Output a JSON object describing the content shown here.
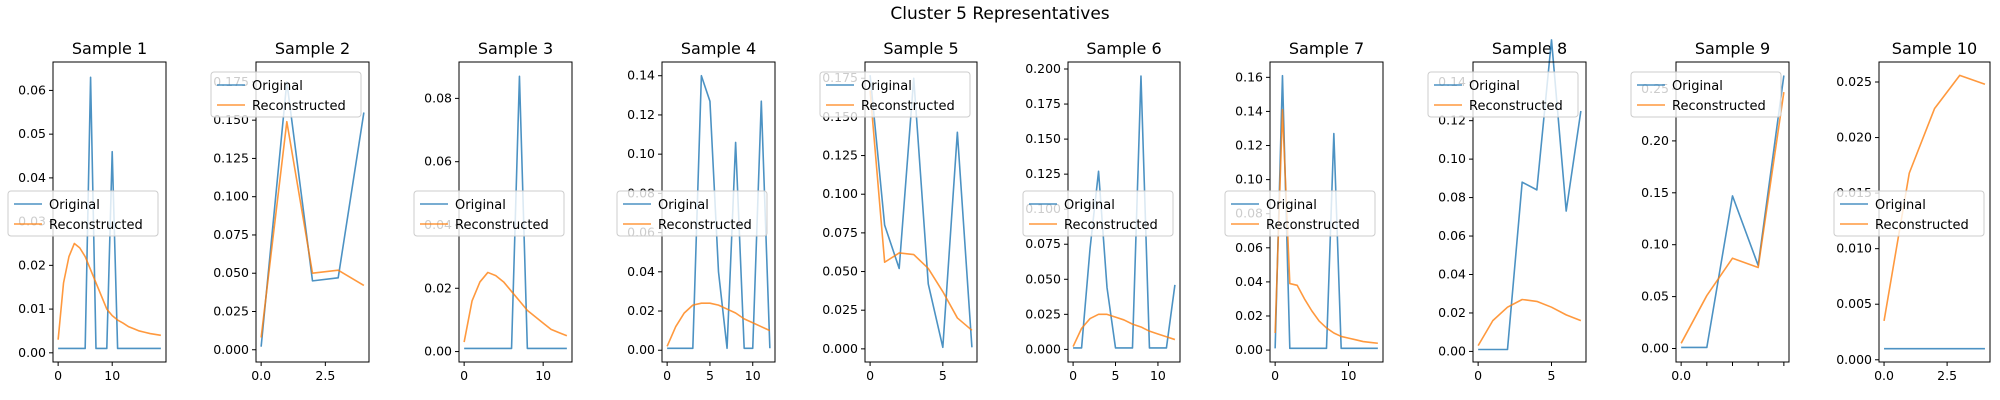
{
  "figure": {
    "suptitle": "Cluster 5 Representatives",
    "legend_labels": [
      "Original",
      "Reconstructed"
    ],
    "colors": {
      "original": "#1f77b4",
      "reconstructed": "#ff7f0e"
    }
  },
  "chart_data": [
    {
      "type": "line",
      "title": "Sample 1",
      "xlim": [
        -0.95,
        19.95
      ],
      "ylim": [
        -0.0021,
        0.0665
      ],
      "xticks": [
        0,
        10
      ],
      "xtick_labels": [
        "0",
        "10"
      ],
      "yticks": [
        0.0,
        0.01,
        0.02,
        0.03,
        0.04,
        0.05,
        0.06
      ],
      "ytick_labels": [
        "0.00",
        "0.01",
        "0.02",
        "0.03",
        "0.04",
        "0.05",
        "0.06"
      ],
      "legend": "center-left",
      "series": [
        {
          "name": "Original",
          "x": [
            0,
            1,
            2,
            3,
            4,
            5,
            6,
            7,
            8,
            9,
            10,
            11,
            12,
            13,
            14,
            15,
            16,
            17,
            18,
            19
          ],
          "y": [
            0.001,
            0.001,
            0.001,
            0.001,
            0.001,
            0.001,
            0.063,
            0.001,
            0.001,
            0.001,
            0.046,
            0.001,
            0.001,
            0.001,
            0.001,
            0.001,
            0.001,
            0.001,
            0.001,
            0.001
          ]
        },
        {
          "name": "Reconstructed",
          "x": [
            0,
            1,
            2,
            3,
            4,
            5,
            6,
            7,
            8,
            9,
            10,
            11,
            12,
            13,
            14,
            15,
            16,
            17,
            18,
            19
          ],
          "y": [
            0.003,
            0.016,
            0.022,
            0.025,
            0.024,
            0.022,
            0.019,
            0.016,
            0.013,
            0.01,
            0.0085,
            0.0075,
            0.0068,
            0.006,
            0.0055,
            0.005,
            0.0047,
            0.0044,
            0.0042,
            0.004
          ]
        }
      ]
    },
    {
      "type": "line",
      "title": "Sample 2",
      "xlim": [
        -0.2,
        4.2
      ],
      "ylim": [
        -0.008,
        0.188
      ],
      "xticks": [
        0,
        2.5
      ],
      "xtick_labels": [
        "0.0",
        "2.5"
      ],
      "yticks": [
        0.0,
        0.025,
        0.05,
        0.075,
        0.1,
        0.125,
        0.15,
        0.175
      ],
      "ytick_labels": [
        "0.000",
        "0.025",
        "0.050",
        "0.075",
        "0.100",
        "0.125",
        "0.150",
        "0.175"
      ],
      "legend": "upper-left",
      "series": [
        {
          "name": "Original",
          "x": [
            0,
            1,
            2,
            3,
            4
          ],
          "y": [
            0.002,
            0.175,
            0.045,
            0.047,
            0.155
          ]
        },
        {
          "name": "Reconstructed",
          "x": [
            0,
            1,
            2,
            3,
            4
          ],
          "y": [
            0.008,
            0.149,
            0.05,
            0.052,
            0.042
          ]
        }
      ]
    },
    {
      "type": "line",
      "title": "Sample 3",
      "xlim": [
        -0.65,
        13.65
      ],
      "ylim": [
        -0.0033,
        0.0915
      ],
      "xticks": [
        0,
        10
      ],
      "xtick_labels": [
        "0",
        "10"
      ],
      "yticks": [
        0.0,
        0.02,
        0.04,
        0.06,
        0.08
      ],
      "ytick_labels": [
        "0.00",
        "0.02",
        "0.04",
        "0.06",
        "0.08"
      ],
      "legend": "center-left",
      "series": [
        {
          "name": "Original",
          "x": [
            0,
            1,
            2,
            3,
            4,
            5,
            6,
            7,
            8,
            9,
            10,
            11,
            12,
            13
          ],
          "y": [
            0.001,
            0.001,
            0.001,
            0.001,
            0.001,
            0.001,
            0.001,
            0.087,
            0.001,
            0.001,
            0.001,
            0.001,
            0.001,
            0.001
          ]
        },
        {
          "name": "Reconstructed",
          "x": [
            0,
            1,
            2,
            3,
            4,
            5,
            6,
            7,
            8,
            9,
            10,
            11,
            12,
            13
          ],
          "y": [
            0.003,
            0.016,
            0.022,
            0.025,
            0.024,
            0.022,
            0.019,
            0.016,
            0.013,
            0.011,
            0.009,
            0.007,
            0.006,
            0.005
          ]
        }
      ]
    },
    {
      "type": "line",
      "title": "Sample 4",
      "xlim": [
        -0.6,
        12.6
      ],
      "ylim": [
        -0.006,
        0.147
      ],
      "xticks": [
        0,
        5,
        10
      ],
      "xtick_labels": [
        "0",
        "5",
        "10"
      ],
      "yticks": [
        0.0,
        0.02,
        0.04,
        0.06,
        0.08,
        0.1,
        0.12,
        0.14
      ],
      "ytick_labels": [
        "0.00",
        "0.02",
        "0.04",
        "0.06",
        "0.08",
        "0.10",
        "0.12",
        "0.14"
      ],
      "legend": "center-left",
      "series": [
        {
          "name": "Original",
          "x": [
            0,
            1,
            2,
            3,
            4,
            5,
            6,
            7,
            8,
            9,
            10,
            11,
            12
          ],
          "y": [
            0.001,
            0.001,
            0.001,
            0.001,
            0.14,
            0.127,
            0.04,
            0.001,
            0.106,
            0.001,
            0.001,
            0.127,
            0.001
          ]
        },
        {
          "name": "Reconstructed",
          "x": [
            0,
            1,
            2,
            3,
            4,
            5,
            6,
            7,
            8,
            9,
            10,
            11,
            12
          ],
          "y": [
            0.002,
            0.012,
            0.019,
            0.023,
            0.024,
            0.024,
            0.023,
            0.021,
            0.019,
            0.016,
            0.014,
            0.012,
            0.01
          ]
        }
      ]
    },
    {
      "type": "line",
      "title": "Sample 5",
      "xlim": [
        -0.35,
        7.35
      ],
      "ylim": [
        -0.0085,
        0.1855
      ],
      "xticks": [
        0,
        5
      ],
      "xtick_labels": [
        "0",
        "5"
      ],
      "yticks": [
        0.0,
        0.025,
        0.05,
        0.075,
        0.1,
        0.125,
        0.15,
        0.175
      ],
      "ytick_labels": [
        "0.000",
        "0.025",
        "0.050",
        "0.075",
        "0.100",
        "0.125",
        "0.150",
        "0.175"
      ],
      "legend": "upper-left",
      "series": [
        {
          "name": "Original",
          "x": [
            0,
            1,
            2,
            3,
            4,
            5,
            6,
            7
          ],
          "y": [
            0.177,
            0.08,
            0.052,
            0.175,
            0.042,
            0.001,
            0.14,
            0.001
          ]
        },
        {
          "name": "Reconstructed",
          "x": [
            0,
            1,
            2,
            3,
            4,
            5,
            6,
            7
          ],
          "y": [
            0.167,
            0.056,
            0.062,
            0.061,
            0.052,
            0.037,
            0.02,
            0.012
          ]
        }
      ]
    },
    {
      "type": "line",
      "title": "Sample 6",
      "xlim": [
        -0.6,
        12.6
      ],
      "ylim": [
        -0.009,
        0.205
      ],
      "xticks": [
        0,
        5,
        10
      ],
      "xtick_labels": [
        "0",
        "5",
        "10"
      ],
      "yticks": [
        0.0,
        0.025,
        0.05,
        0.075,
        0.1,
        0.125,
        0.15,
        0.175,
        0.2
      ],
      "ytick_labels": [
        "0.000",
        "0.025",
        "0.050",
        "0.075",
        "0.100",
        "0.125",
        "0.150",
        "0.175",
        "0.200"
      ],
      "legend": "center-left",
      "series": [
        {
          "name": "Original",
          "x": [
            0,
            1,
            2,
            3,
            4,
            5,
            6,
            7,
            8,
            9,
            10,
            11,
            12
          ],
          "y": [
            0.001,
            0.001,
            0.072,
            0.127,
            0.044,
            0.001,
            0.001,
            0.001,
            0.195,
            0.001,
            0.001,
            0.001,
            0.046
          ]
        },
        {
          "name": "Reconstructed",
          "x": [
            0,
            1,
            2,
            3,
            4,
            5,
            6,
            7,
            8,
            9,
            10,
            11,
            12
          ],
          "y": [
            0.002,
            0.015,
            0.022,
            0.025,
            0.025,
            0.023,
            0.021,
            0.018,
            0.016,
            0.013,
            0.011,
            0.009,
            0.007
          ]
        }
      ]
    },
    {
      "type": "line",
      "title": "Sample 7",
      "xlim": [
        -0.7,
        14.7
      ],
      "ylim": [
        -0.007,
        0.169
      ],
      "xticks": [
        0,
        10
      ],
      "xtick_labels": [
        "0",
        "10"
      ],
      "yticks": [
        0.0,
        0.02,
        0.04,
        0.06,
        0.08,
        0.1,
        0.12,
        0.14,
        0.16
      ],
      "ytick_labels": [
        "0.00",
        "0.02",
        "0.04",
        "0.06",
        "0.08",
        "0.10",
        "0.12",
        "0.14",
        "0.16"
      ],
      "legend": "center-left",
      "series": [
        {
          "name": "Original",
          "x": [
            0,
            1,
            2,
            3,
            4,
            5,
            6,
            7,
            8,
            9,
            10,
            11,
            12,
            13,
            14
          ],
          "y": [
            0.001,
            0.161,
            0.001,
            0.001,
            0.001,
            0.001,
            0.001,
            0.001,
            0.127,
            0.001,
            0.001,
            0.001,
            0.001,
            0.001,
            0.001
          ]
        },
        {
          "name": "Reconstructed",
          "x": [
            0,
            1,
            2,
            3,
            4,
            5,
            6,
            7,
            8,
            9,
            10,
            11,
            12,
            13,
            14
          ],
          "y": [
            0.01,
            0.141,
            0.039,
            0.038,
            0.03,
            0.023,
            0.017,
            0.013,
            0.01,
            0.008,
            0.007,
            0.006,
            0.005,
            0.0045,
            0.004
          ]
        }
      ]
    },
    {
      "type": "line",
      "title": "Sample 8",
      "xlim": [
        -0.35,
        7.35
      ],
      "ylim": [
        -0.0055,
        0.1505
      ],
      "xticks": [
        0,
        5
      ],
      "xtick_labels": [
        "0",
        "5"
      ],
      "yticks": [
        0.0,
        0.02,
        0.04,
        0.06,
        0.08,
        0.1,
        0.12,
        0.14
      ],
      "ytick_labels": [
        "0.00",
        "0.02",
        "0.04",
        "0.06",
        "0.08",
        "0.10",
        "0.12",
        "0.14"
      ],
      "legend": "upper-left",
      "series": [
        {
          "name": "Original",
          "x": [
            0,
            1,
            2,
            3,
            4,
            5,
            6,
            7
          ],
          "y": [
            0.001,
            0.001,
            0.001,
            0.088,
            0.084,
            0.162,
            0.073,
            0.125
          ]
        },
        {
          "name": "Reconstructed",
          "x": [
            0,
            1,
            2,
            3,
            4,
            5,
            6,
            7
          ],
          "y": [
            0.003,
            0.016,
            0.023,
            0.027,
            0.026,
            0.023,
            0.019,
            0.016
          ]
        }
      ]
    },
    {
      "type": "line",
      "title": "Sample 9",
      "xlim": [
        -0.2,
        4.2
      ],
      "ylim": [
        -0.013,
        0.276
      ],
      "xticks": [
        0,
        1,
        2,
        3,
        4
      ],
      "xtick_labels": [
        "0.0",
        "",
        "",
        "",
        ""
      ],
      "yticks": [
        0.0,
        0.05,
        0.1,
        0.15,
        0.2,
        0.25
      ],
      "ytick_labels": [
        "0.00",
        "0.05",
        "0.10",
        "0.15",
        "0.20",
        "0.25"
      ],
      "legend": "upper-left",
      "series": [
        {
          "name": "Original",
          "x": [
            0,
            1,
            2,
            3,
            4
          ],
          "y": [
            0.001,
            0.001,
            0.147,
            0.08,
            0.263
          ]
        },
        {
          "name": "Reconstructed",
          "x": [
            0,
            1,
            2,
            3,
            4
          ],
          "y": [
            0.005,
            0.051,
            0.087,
            0.078,
            0.247
          ]
        }
      ]
    },
    {
      "type": "line",
      "title": "Sample 10",
      "xlim": [
        -0.2,
        4.2
      ],
      "ylim": [
        -0.0002,
        0.0268
      ],
      "xticks": [
        0,
        2.5
      ],
      "xtick_labels": [
        "0.0",
        "2.5"
      ],
      "yticks": [
        0.0,
        0.005,
        0.01,
        0.015,
        0.02,
        0.025
      ],
      "ytick_labels": [
        "0.000",
        "0.005",
        "0.010",
        "0.015",
        "0.020",
        "0.025"
      ],
      "legend": "center-left",
      "series": [
        {
          "name": "Original",
          "x": [
            0,
            1,
            2,
            3,
            4
          ],
          "y": [
            0.001,
            0.001,
            0.001,
            0.001,
            0.001
          ]
        },
        {
          "name": "Reconstructed",
          "x": [
            0,
            1,
            2,
            3,
            4
          ],
          "y": [
            0.0035,
            0.0168,
            0.0226,
            0.0256,
            0.0248
          ]
        }
      ]
    }
  ]
}
